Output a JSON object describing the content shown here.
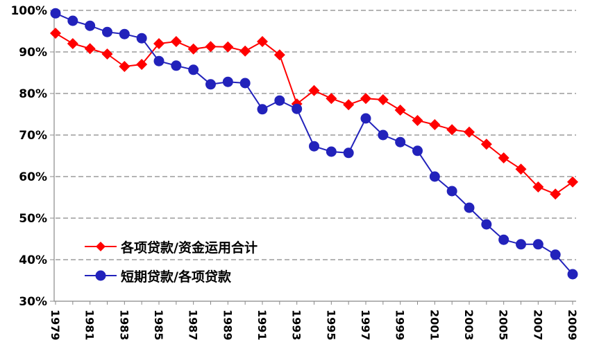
{
  "chart_data": {
    "type": "line",
    "title": "",
    "xlabel": "",
    "ylabel": "",
    "ylim": [
      30,
      100
    ],
    "y_ticks": [
      "30%",
      "40%",
      "50%",
      "60%",
      "70%",
      "80%",
      "90%",
      "100%"
    ],
    "x_tick_labels": [
      "1979",
      "1981",
      "1983",
      "1985",
      "1987",
      "1989",
      "1991",
      "1993",
      "1995",
      "1997",
      "1999",
      "2001",
      "2003",
      "2005",
      "2007",
      "2009"
    ],
    "grid": true,
    "legend_placement": "bottom-left",
    "x": [
      1979,
      1980,
      1981,
      1982,
      1983,
      1984,
      1985,
      1986,
      1987,
      1988,
      1989,
      1990,
      1991,
      1992,
      1993,
      1994,
      1995,
      1996,
      1997,
      1998,
      1999,
      2000,
      2001,
      2002,
      2003,
      2004,
      2005,
      2006,
      2007,
      2008,
      2009
    ],
    "series": [
      {
        "name": "各项贷款/资金运用合计",
        "color": "#ff0000",
        "marker": "diamond",
        "values": [
          94.5,
          92.0,
          90.8,
          89.5,
          86.5,
          87.0,
          92.0,
          92.5,
          90.7,
          91.3,
          91.2,
          90.2,
          92.5,
          89.3,
          77.5,
          80.7,
          78.8,
          77.3,
          78.8,
          78.5,
          76.0,
          73.5,
          72.5,
          71.3,
          70.7,
          67.8,
          64.5,
          61.8,
          57.5,
          55.8,
          58.7
        ]
      },
      {
        "name": "短期贷款/各项贷款",
        "color": "#2222bb",
        "marker": "circle",
        "values": [
          99.3,
          97.5,
          96.3,
          94.8,
          94.3,
          93.3,
          87.8,
          86.7,
          85.7,
          82.2,
          82.8,
          82.5,
          76.2,
          78.3,
          76.3,
          67.3,
          66.0,
          65.7,
          74.0,
          70.0,
          68.3,
          66.2,
          60.0,
          56.5,
          52.5,
          48.5,
          44.8,
          43.7,
          43.7,
          41.2,
          36.5
        ]
      }
    ]
  }
}
